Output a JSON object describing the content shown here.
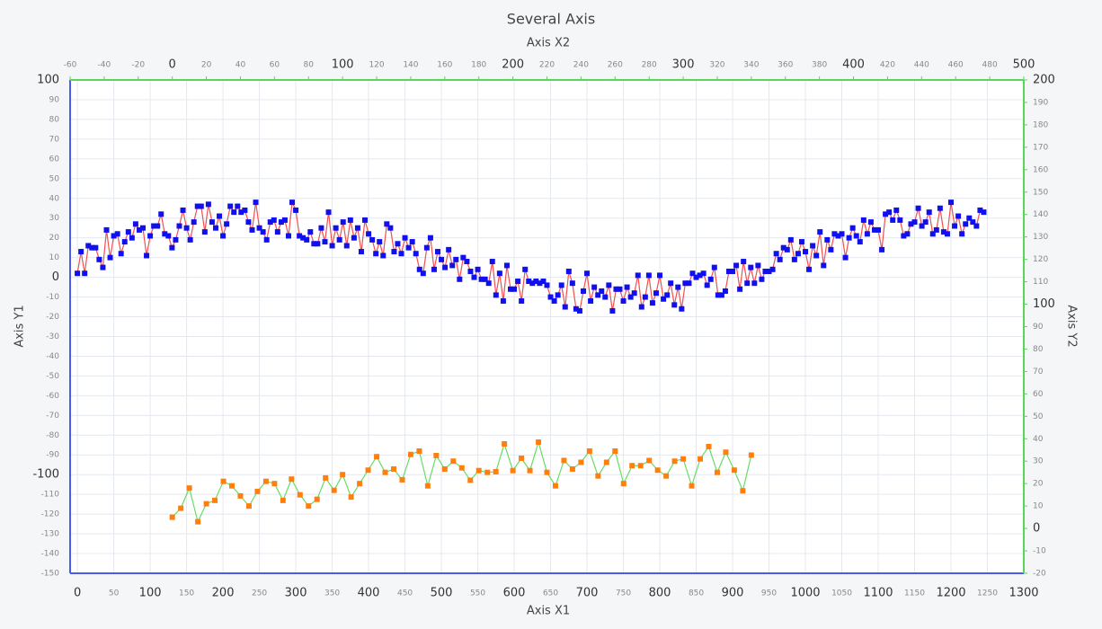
{
  "chart_data": {
    "type": "line",
    "title": "Several Axis",
    "xlabel": "Axis X1",
    "x2label": "Axis X2",
    "ylabel": "Axis Y1",
    "y2label": "Axis Y2",
    "xlim": [
      -10,
      1300
    ],
    "xticks": [
      0,
      50,
      100,
      150,
      200,
      250,
      300,
      350,
      400,
      450,
      500,
      550,
      600,
      650,
      700,
      750,
      800,
      850,
      900,
      950,
      1000,
      1050,
      1100,
      1150,
      1200,
      1250,
      1300
    ],
    "x2lim": [
      -60,
      500
    ],
    "x2ticks": [
      -60,
      -40,
      -20,
      0,
      20,
      40,
      60,
      80,
      100,
      120,
      140,
      160,
      180,
      200,
      220,
      240,
      260,
      280,
      300,
      320,
      340,
      360,
      380,
      400,
      420,
      440,
      460,
      480,
      500
    ],
    "ylim": [
      -150,
      100
    ],
    "yticks": [
      -150,
      -140,
      -130,
      -120,
      -110,
      -100,
      -90,
      -80,
      -70,
      -60,
      -50,
      -40,
      -30,
      -20,
      -10,
      0,
      10,
      20,
      30,
      40,
      50,
      60,
      70,
      80,
      90,
      100
    ],
    "y2lim": [
      -20,
      200
    ],
    "y2ticks": [
      -20,
      -10,
      0,
      10,
      20,
      30,
      40,
      50,
      60,
      70,
      80,
      90,
      100,
      110,
      120,
      130,
      140,
      150,
      160,
      170,
      180,
      190,
      200
    ],
    "grid": true,
    "series": [
      {
        "color": "#f05050",
        "marker_color": "#1010ee",
        "axis": "y",
        "xaxis": "x",
        "x": [
          0,
          5,
          10,
          15,
          20,
          25,
          30,
          35,
          40,
          45,
          50,
          55,
          60,
          65,
          70,
          75,
          80,
          85,
          90,
          95,
          100,
          105,
          110,
          115,
          120,
          125,
          130,
          135,
          140,
          145,
          150,
          155,
          160,
          165,
          170,
          175,
          180,
          185,
          190,
          195,
          200,
          205,
          210,
          215,
          220,
          225,
          230,
          235,
          240,
          245,
          250,
          255,
          260,
          265,
          270,
          275,
          280,
          285,
          290,
          295,
          300,
          305,
          310,
          315,
          320,
          325,
          330,
          335,
          340,
          345,
          350,
          355,
          360,
          365,
          370,
          375,
          380,
          385,
          390,
          395,
          400,
          405,
          410,
          415,
          420,
          425,
          430,
          435,
          440,
          445,
          450,
          455,
          460,
          465,
          470,
          475,
          480,
          485,
          490,
          495,
          500,
          505,
          510,
          515,
          520,
          525,
          530,
          535,
          540,
          545,
          550,
          555,
          560,
          565,
          570,
          575,
          580,
          585,
          590,
          595,
          600,
          605,
          610,
          615,
          620,
          625,
          630,
          635,
          640,
          645,
          650,
          655,
          660,
          665,
          670,
          675,
          680,
          685,
          690,
          695,
          700,
          705,
          710,
          715,
          720,
          725,
          730,
          735,
          740,
          745,
          750,
          755,
          760,
          765,
          770,
          775,
          780,
          785,
          790,
          795,
          800,
          805,
          810,
          815,
          820,
          825,
          830,
          835,
          840,
          845,
          850,
          855,
          860,
          865,
          870,
          875,
          880,
          885,
          890,
          895,
          900,
          905,
          910,
          915,
          920,
          925,
          930,
          935,
          940,
          945,
          950,
          955,
          960,
          965,
          970,
          975,
          980,
          985,
          990,
          995,
          1000,
          1005,
          1010,
          1015,
          1020,
          1025,
          1030,
          1035,
          1040,
          1045,
          1050,
          1055,
          1060,
          1065,
          1070,
          1075,
          1080,
          1085,
          1090,
          1095,
          1100,
          1105,
          1110,
          1115,
          1120,
          1125,
          1130,
          1135,
          1140,
          1145,
          1150,
          1155,
          1160,
          1165,
          1170,
          1175,
          1180,
          1185,
          1190,
          1195,
          1200,
          1205,
          1210,
          1215,
          1220,
          1225,
          1230,
          1235,
          1240,
          1245
        ],
        "values": [
          2,
          13,
          2,
          16,
          15,
          15,
          9,
          5,
          24,
          10,
          21,
          22,
          12,
          18,
          23,
          20,
          27,
          24,
          25,
          11,
          21,
          26,
          26,
          32,
          22,
          21,
          15,
          19,
          26,
          34,
          25,
          19,
          28,
          36,
          36,
          23,
          37,
          28,
          25,
          31,
          21,
          27,
          36,
          33,
          36,
          33,
          34,
          28,
          24,
          38,
          25,
          23,
          19,
          28,
          29,
          23,
          28,
          29,
          21,
          38,
          34,
          21,
          20,
          19,
          23,
          17,
          17,
          25,
          18,
          33,
          16,
          25,
          19,
          28,
          16,
          29,
          20,
          25,
          13,
          29,
          22,
          19,
          12,
          18,
          11,
          27,
          25,
          13,
          17,
          12,
          20,
          15,
          18,
          12,
          4,
          2,
          15,
          20,
          4,
          13,
          9,
          5,
          14,
          6,
          9,
          -1,
          10,
          8,
          3,
          0,
          4,
          -1,
          -1,
          -3,
          8,
          -9,
          2,
          -12,
          6,
          -6,
          -6,
          -2,
          -12,
          4,
          -2,
          -3,
          -2,
          -3,
          -2,
          -4,
          -10,
          -12,
          -9,
          -4,
          -15,
          3,
          -3,
          -16,
          -17,
          -7,
          2,
          -12,
          -5,
          -9,
          -7,
          -10,
          -4,
          -17,
          -6,
          -6,
          -12,
          -5,
          -10,
          -8,
          1,
          -15,
          -10,
          1,
          -13,
          -8,
          1,
          -11,
          -9,
          -3,
          -14,
          -5,
          -16,
          -3,
          -3,
          2,
          0,
          1,
          2,
          -4,
          -1,
          5,
          -9,
          -9,
          -7,
          3,
          3,
          6,
          -6,
          8,
          -3,
          5,
          -3,
          6,
          -1,
          3,
          3,
          4,
          12,
          9,
          15,
          14,
          19,
          9,
          12,
          18,
          13,
          4,
          16,
          11,
          23,
          6,
          19,
          14,
          22,
          21,
          22,
          10,
          20,
          25,
          21,
          18,
          29,
          22,
          28,
          24,
          24,
          14,
          32,
          33,
          29,
          34,
          29,
          21,
          22,
          27,
          28,
          35,
          26,
          28,
          33,
          22,
          24,
          35,
          23,
          22,
          38,
          26,
          31,
          22,
          27,
          30,
          28,
          26,
          34,
          33
        ]
      },
      {
        "color": "#66dd66",
        "marker_color": "#ff7f0e",
        "axis": "y2",
        "xaxis": "x2",
        "x": [
          0,
          5,
          10,
          15,
          20,
          25,
          30,
          35,
          40,
          45,
          50,
          55,
          60,
          65,
          70,
          75,
          80,
          85,
          90,
          95,
          100,
          105,
          110,
          115,
          120,
          125,
          130,
          135,
          140,
          145,
          150,
          155,
          160,
          165,
          170,
          175,
          180,
          185,
          190,
          195,
          200,
          205,
          210,
          215,
          220,
          225,
          230,
          235,
          240,
          245,
          250,
          255,
          260,
          265,
          270,
          275,
          280,
          285,
          290,
          295,
          300,
          305,
          310,
          315,
          320,
          325,
          330,
          335,
          340
        ],
        "values": [
          5,
          9,
          18,
          3,
          11,
          12.5,
          21,
          19,
          14.5,
          10,
          16.5,
          21,
          20,
          12.5,
          22,
          15,
          10,
          13,
          22.5,
          17,
          24,
          14,
          20,
          26,
          32,
          25,
          26.5,
          21.7,
          33,
          34.5,
          19,
          32.5,
          26.5,
          30,
          27,
          21.5,
          25.8,
          25,
          25.3,
          37.7,
          25.8,
          31.3,
          25.8,
          38.5,
          25,
          19,
          30.3,
          26.5,
          29.5,
          34.5,
          23.4,
          29.5,
          34.5,
          20,
          28,
          28,
          30.3,
          26,
          23.4,
          30,
          31,
          19,
          31,
          36.5,
          25,
          34,
          26,
          16.8,
          32.7
        ]
      }
    ]
  }
}
